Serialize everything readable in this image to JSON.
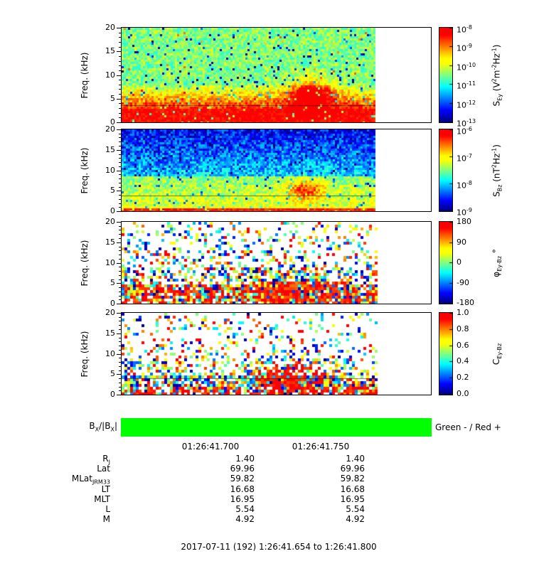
{
  "chart_data": {
    "type": "heatmap",
    "x_axis": {
      "tick_labels": [
        "01:26:41.700",
        "01:26:41.750"
      ],
      "start": "1:26:41.654",
      "end": "1:26:41.800",
      "date": "2017-07-11 (192)"
    },
    "panels": [
      {
        "name": "S_Ey spectrogram",
        "ylabel": "Freq. (kHz)",
        "ylim": [
          0,
          20
        ],
        "yticks": [
          0,
          5,
          10,
          15,
          20
        ],
        "colorbar_label": "S_{Ey} (V^{2}m^{-2}Hz^{-1})",
        "colorbar_ticks": [
          "10^{-8}",
          "10^{-9}",
          "10^{-10}",
          "10^{-11}",
          "10^{-12}",
          "10^{-13}"
        ],
        "scale": "log",
        "pattern": "sey",
        "seed": 11,
        "line_khz": 3.6,
        "description": "Electric-field spectral density: intense red band below ~3 kHz, orange-yellow 3-7 kHz, green background with blue speckles above 8 kHz, red burst near 01:26:41.75 at 4-9 kHz; data ends ~82% across the panel, white gap at right"
      },
      {
        "name": "S_Bz spectrogram",
        "ylabel": "Freq. (kHz)",
        "ylim": [
          0,
          20
        ],
        "yticks": [
          0,
          5,
          10,
          15,
          20
        ],
        "colorbar_label": "S_{Bz} (nT^{2}Hz^{-1})",
        "colorbar_ticks": [
          "10^{-6}",
          "10^{-7}",
          "10^{-8}",
          "10^{-9}"
        ],
        "scale": "log",
        "pattern": "sbz",
        "seed": 23,
        "line_khz": 3.9,
        "description": "Magnetic-field spectral density: dark blue above ~10 kHz, green-cyan 1-9 kHz, thin red band at the bottom, yellow-orange enhancement near 01:26:41.75 at 3-8 kHz"
      },
      {
        "name": "Phase Ey-Bz spectrogram",
        "ylabel": "Freq. (kHz)",
        "ylim": [
          0,
          20
        ],
        "yticks": [
          0,
          5,
          10,
          15,
          20
        ],
        "colorbar_label": "φ_{Ey-Bz} °",
        "colorbar_ticks": [
          "180",
          "90",
          "0",
          "-90",
          "-180"
        ],
        "scale": "linear",
        "pattern": "phase",
        "seed": 37,
        "line_khz": null,
        "description": "Cross-phase: white background with multicolored speckle; density increases below ~8 kHz; dominant red/dark-red (near ±180°) patch below ~8 kHz around 01:26:41.74-41.76"
      },
      {
        "name": "Coherence Ey-Bz spectrogram",
        "ylabel": "Freq. (kHz)",
        "ylim": [
          0,
          20
        ],
        "yticks": [
          0,
          5,
          10,
          15,
          20
        ],
        "colorbar_label": "C_{Ey-Bz}",
        "colorbar_ticks": [
          "1.0",
          "0.8",
          "0.6",
          "0.4",
          "0.2",
          "0.0"
        ],
        "scale": "linear",
        "pattern": "coh",
        "seed": 51,
        "line_khz": 4.0,
        "description": "Coherence: sparse speckle above 10 kHz, dense mixed colors below 5 kHz, high-coherence red blob at 2-8 kHz near 01:26:41.74"
      }
    ],
    "sign_bar": {
      "label": "B_{X}/|B_{X}|",
      "legend": "Green - / Red +",
      "color": "#00ff00",
      "state": "all green (negative) for the entire interval"
    },
    "ephemeris": {
      "rows": [
        {
          "label": "R_{J}",
          "values": [
            "1.40",
            "1.40"
          ]
        },
        {
          "label": "Lat",
          "values": [
            "69.96",
            "69.96"
          ]
        },
        {
          "label": "MLat_{JRM33}",
          "values": [
            "59.82",
            "59.82"
          ]
        },
        {
          "label": "LT",
          "values": [
            "16.68",
            "16.68"
          ]
        },
        {
          "label": "MLT",
          "values": [
            "16.95",
            "16.95"
          ]
        },
        {
          "label": "L",
          "values": [
            "5.54",
            "5.54"
          ]
        },
        {
          "label": "M",
          "values": [
            "4.92",
            "4.92"
          ]
        }
      ]
    },
    "caption": "2017-07-11 (192) 1:26:41.654 to 1:26:41.800"
  }
}
